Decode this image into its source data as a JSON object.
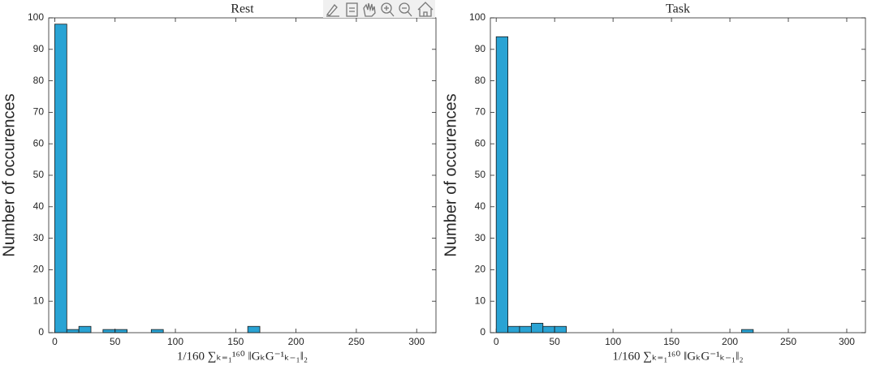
{
  "chart_data": [
    {
      "type": "histogram",
      "title": "Rest",
      "xlabel": "1/160 ∑ₖ₌₁¹⁶⁰ ‖GₖG⁻¹ₖ₋₁‖₂",
      "ylabel": "Number of occurences",
      "bins": [
        0,
        10,
        20,
        30,
        40,
        50,
        60,
        70,
        80,
        90,
        100,
        110,
        120,
        130,
        140,
        150,
        160,
        170
      ],
      "values": [
        98,
        1,
        2,
        0,
        1,
        1,
        0,
        0,
        1,
        0,
        0,
        0,
        0,
        0,
        0,
        0,
        2
      ],
      "color": "#29a3d4",
      "xlim": [
        -5,
        316
      ],
      "ylim": [
        0,
        100
      ],
      "xticks": [
        0,
        50,
        100,
        150,
        200,
        250,
        300
      ],
      "yticks": [
        0,
        10,
        20,
        30,
        40,
        50,
        60,
        70,
        80,
        90,
        100
      ],
      "grid": false
    },
    {
      "type": "histogram",
      "title": "Task",
      "xlabel": "1/160 ∑ₖ₌₁¹⁶⁰ ‖GₖG⁻¹ₖ₋₁‖₂",
      "ylabel": "Number of occurences",
      "bins": [
        0,
        10,
        20,
        30,
        40,
        50,
        60,
        70,
        80,
        90,
        100,
        110,
        120,
        130,
        140,
        150,
        160,
        170,
        180,
        190,
        200,
        210,
        220
      ],
      "values": [
        94,
        2,
        2,
        3,
        2,
        2,
        0,
        0,
        0,
        0,
        0,
        0,
        0,
        0,
        0,
        0,
        0,
        0,
        0,
        0,
        0,
        1
      ],
      "color": "#29a3d4",
      "xlim": [
        -5,
        316
      ],
      "ylim": [
        0,
        100
      ],
      "xticks": [
        0,
        50,
        100,
        150,
        200,
        250,
        300
      ],
      "yticks": [
        0,
        10,
        20,
        30,
        40,
        50,
        60,
        70,
        80,
        90,
        100
      ],
      "grid": false
    }
  ]
}
